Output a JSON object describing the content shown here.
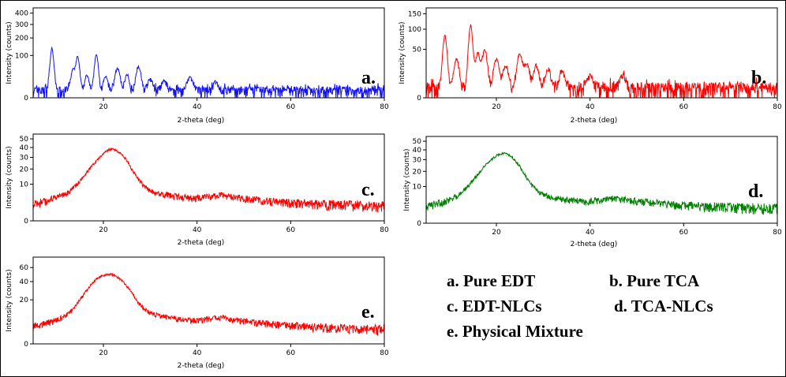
{
  "chart_data": [
    {
      "type": "line",
      "panel": "a.",
      "color": "#1010ff",
      "xlabel": "2-theta (deg)",
      "ylabel": "Intensity (counts)",
      "xlim": [
        5,
        80
      ],
      "x_ticks": [
        20,
        40,
        60,
        80
      ],
      "y_scale": "sqrt",
      "ylim": [
        0,
        420
      ],
      "y_ticks": [
        0,
        100,
        200,
        300,
        400
      ],
      "baseline": 3,
      "noise": 4,
      "peaks": [
        [
          9,
          130,
          0.35
        ],
        [
          13.5,
          40,
          0.4
        ],
        [
          14.5,
          90,
          0.35
        ],
        [
          16.5,
          25,
          0.4
        ],
        [
          18.5,
          100,
          0.35
        ],
        [
          20.5,
          20,
          0.4
        ],
        [
          23,
          45,
          0.45
        ],
        [
          25,
          25,
          0.4
        ],
        [
          27.5,
          50,
          0.45
        ],
        [
          30,
          15,
          0.5
        ],
        [
          33,
          12,
          0.5
        ],
        [
          38.5,
          20,
          0.5
        ],
        [
          44,
          10,
          0.5
        ]
      ]
    },
    {
      "type": "line",
      "panel": "b.",
      "color": "#ff0000",
      "xlabel": "2-theta (deg)",
      "ylabel": "Intensity (counts)",
      "xlim": [
        5,
        80
      ],
      "x_ticks": [
        20,
        40,
        60,
        80
      ],
      "y_scale": "sqrt",
      "ylim": [
        0,
        160
      ],
      "y_ticks": [
        0,
        50,
        100,
        150
      ],
      "baseline": 2,
      "noise": 3,
      "peaks": [
        [
          9,
          80,
          0.4
        ],
        [
          11.5,
          30,
          0.45
        ],
        [
          14.5,
          110,
          0.4
        ],
        [
          16,
          40,
          0.45
        ],
        [
          17.5,
          45,
          0.5
        ],
        [
          20,
          30,
          0.5
        ],
        [
          22,
          20,
          0.5
        ],
        [
          25,
          40,
          0.5
        ],
        [
          26.5,
          20,
          0.5
        ],
        [
          28.5,
          20,
          0.5
        ],
        [
          31,
          15,
          0.5
        ],
        [
          34,
          12,
          0.55
        ],
        [
          40,
          8,
          0.6
        ],
        [
          47,
          8,
          0.6
        ]
      ]
    },
    {
      "type": "line",
      "panel": "c.",
      "color": "#ff0000",
      "xlabel": "2-theta (deg)",
      "ylabel": "Intensity (counts)",
      "xlim": [
        5,
        80
      ],
      "x_ticks": [
        20,
        40,
        60,
        80
      ],
      "y_scale": "sqrt",
      "ylim": [
        0,
        52
      ],
      "y_ticks": [
        0,
        10,
        20,
        30,
        40,
        50
      ],
      "baseline": 1.5,
      "noise": 1.2,
      "halo": [
        [
          20.5,
          25,
          3.5
        ],
        [
          23,
          10,
          2.5
        ],
        [
          14,
          3,
          5
        ]
      ],
      "tail": [
        [
          25,
          7
        ],
        [
          45,
          2
        ]
      ]
    },
    {
      "type": "line",
      "panel": "d.",
      "color": "#008000",
      "xlabel": "2-theta (deg)",
      "ylabel": "Intensity (counts)",
      "xlim": [
        5,
        80
      ],
      "x_ticks": [
        20,
        40,
        60,
        80
      ],
      "y_scale": "sqrt",
      "ylim": [
        0,
        52
      ],
      "y_ticks": [
        0,
        10,
        20,
        30,
        40,
        50
      ],
      "baseline": 1.5,
      "noise": 1.2,
      "halo": [
        [
          20,
          25,
          3.5
        ],
        [
          23,
          10,
          2.5
        ],
        [
          14,
          3,
          5
        ]
      ],
      "tail": [
        [
          25,
          6
        ],
        [
          45,
          2
        ]
      ]
    },
    {
      "type": "line",
      "panel": "e.",
      "color": "#ff0000",
      "xlabel": "2-theta (deg)",
      "ylabel": "Intensity (counts)",
      "xlim": [
        5,
        80
      ],
      "x_ticks": [
        20,
        40,
        60,
        80
      ],
      "y_scale": "sqrt",
      "ylim": [
        0,
        72
      ],
      "y_ticks": [
        0,
        20,
        40,
        60
      ],
      "baseline": 2,
      "noise": 1.5,
      "halo": [
        [
          19.5,
          38,
          3.2
        ],
        [
          23.5,
          18,
          2.5
        ],
        [
          13,
          4,
          5
        ]
      ],
      "tail": [
        [
          26,
          10
        ],
        [
          45,
          3
        ]
      ]
    }
  ],
  "legend": {
    "a": "a. Pure EDT",
    "b": "b. Pure TCA",
    "c": "c. EDT-NLCs",
    "d": "d. TCA-NLCs",
    "e": "e. Physical Mixture"
  }
}
